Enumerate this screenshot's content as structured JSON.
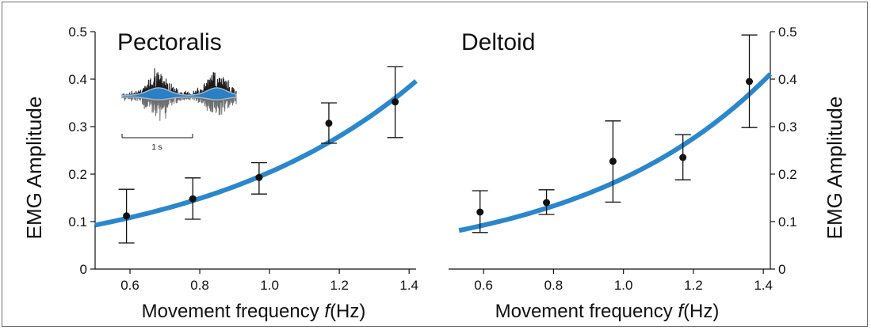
{
  "chart_data": [
    {
      "type": "scatter",
      "title": "Pectoralis",
      "xlabel_prefix": "Movement frequency ",
      "xlabel_var": "f",
      "xlabel_suffix": "(Hz)",
      "ylabel": "EMG Amplitude",
      "xlim": [
        0.5,
        1.42
      ],
      "ylim": [
        0,
        0.5
      ],
      "xticks": [
        "0.6",
        "0.8",
        "1.0",
        "1.2",
        "1.4"
      ],
      "yticks": [
        "0",
        "0.1",
        "0.2",
        "0.3",
        "0.4",
        "0.5"
      ],
      "yaxis_side": "left",
      "grid": false,
      "points": [
        {
          "x": 0.59,
          "y": 0.112,
          "err_low": 0.055,
          "err_high": 0.168
        },
        {
          "x": 0.78,
          "y": 0.148,
          "err_low": 0.105,
          "err_high": 0.192
        },
        {
          "x": 0.97,
          "y": 0.193,
          "err_low": 0.158,
          "err_high": 0.224
        },
        {
          "x": 1.17,
          "y": 0.307,
          "err_low": 0.265,
          "err_high": 0.35
        },
        {
          "x": 1.36,
          "y": 0.352,
          "err_low": 0.277,
          "err_high": 0.426
        }
      ],
      "fit": {
        "color": "#2b87cc",
        "x_range": [
          0.5,
          1.42
        ],
        "a": 0.042,
        "b": 1.58
      },
      "inset": {
        "scalebar_label": "1 s",
        "raw_color": "#1a1a1a",
        "envelope_color": "#2b7fc4"
      }
    },
    {
      "type": "scatter",
      "title": "Deltoid",
      "xlabel_prefix": "Movement frequency ",
      "xlabel_var": "f",
      "xlabel_suffix": "(Hz)",
      "ylabel": "EMG Amplitude",
      "xlim": [
        0.5,
        1.42
      ],
      "ylim": [
        0,
        0.5
      ],
      "xticks": [
        "0.6",
        "0.8",
        "1.0",
        "1.2",
        "1.4"
      ],
      "yticks": [
        "0",
        "0.1",
        "0.2",
        "0.3",
        "0.4",
        "0.5"
      ],
      "yaxis_side": "right",
      "grid": false,
      "points": [
        {
          "x": 0.59,
          "y": 0.12,
          "err_low": 0.077,
          "err_high": 0.165
        },
        {
          "x": 0.78,
          "y": 0.14,
          "err_low": 0.115,
          "err_high": 0.167
        },
        {
          "x": 0.97,
          "y": 0.227,
          "err_low": 0.141,
          "err_high": 0.312
        },
        {
          "x": 1.17,
          "y": 0.235,
          "err_low": 0.188,
          "err_high": 0.283
        },
        {
          "x": 1.36,
          "y": 0.395,
          "err_low": 0.298,
          "err_high": 0.493
        }
      ],
      "fit": {
        "color": "#2b87cc",
        "x_range": [
          0.53,
          1.42
        ],
        "a": 0.031,
        "b": 1.82
      }
    }
  ]
}
